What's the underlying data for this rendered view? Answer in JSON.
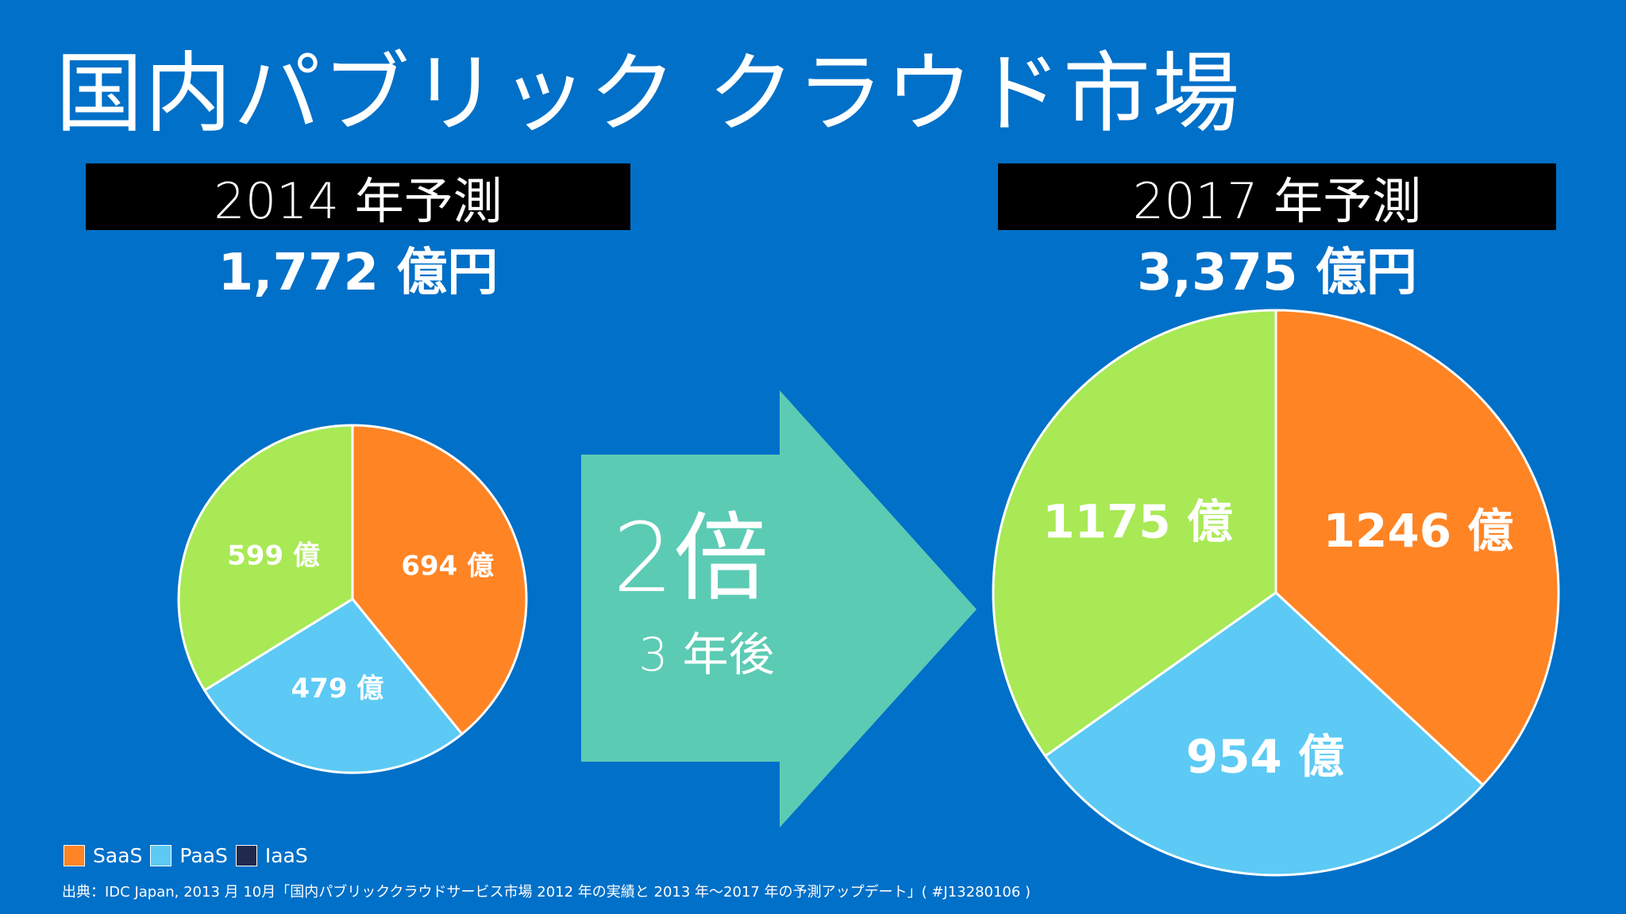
{
  "title": "国内パブリック クラウド市場",
  "colors": {
    "background": "#0070c8",
    "saas": "#ff8424",
    "paas": "#5ccaf4",
    "iaas": "#1f2a4d",
    "other": "#a8e955",
    "arrow": "#5ccbb4"
  },
  "left_panel": {
    "year_label": "2014 年予測",
    "total": "1,772 億円"
  },
  "right_panel": {
    "year_label": "2017 年予測",
    "total": "3,375 億円"
  },
  "arrow": {
    "multiplier": "2倍",
    "period": "3 年後"
  },
  "chart_data": [
    {
      "type": "pie",
      "slices": [
        {
          "label": "694 億",
          "value": 694,
          "color": "#ff8424"
        },
        {
          "label": "479 億",
          "value": 479,
          "color": "#5ccaf4"
        },
        {
          "label": "599 億",
          "value": 599,
          "color": "#a8e955"
        }
      ]
    },
    {
      "type": "pie",
      "slices": [
        {
          "label": "1246 億",
          "value": 1246,
          "color": "#ff8424"
        },
        {
          "label": "954 億",
          "value": 954,
          "color": "#5ccaf4"
        },
        {
          "label": "1175 億",
          "value": 1175,
          "color": "#a8e955"
        }
      ]
    }
  ],
  "legend": [
    {
      "label": "SaaS",
      "color": "#ff8424"
    },
    {
      "label": "PaaS",
      "color": "#5ccaf4"
    },
    {
      "label": "IaaS",
      "color": "#1f2a4d"
    }
  ],
  "source": "出典：IDC Japan, 2013 月 10月「国内パブリッククラウドサービス市場 2012 年の実績と 2013 年～2017 年の予測アップデート」( #J13280106 )"
}
